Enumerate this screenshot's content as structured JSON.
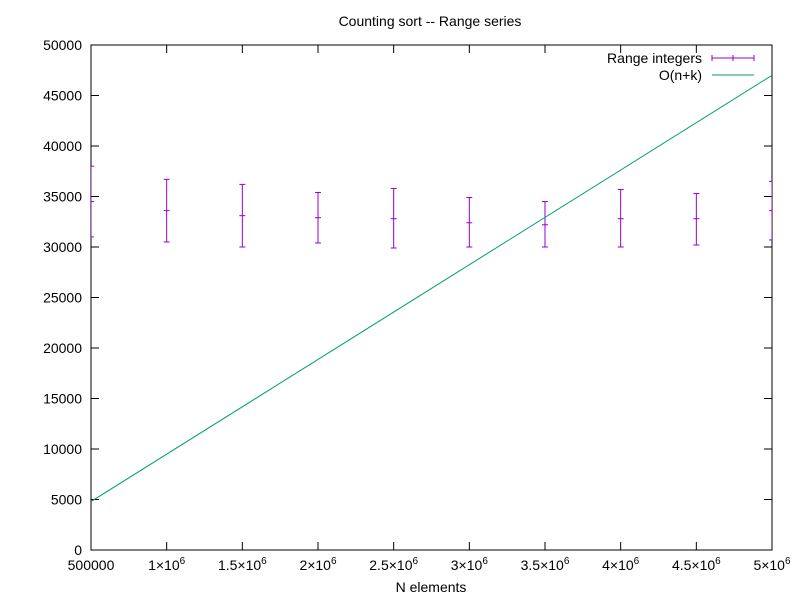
{
  "chart_data": {
    "type": "line",
    "title": "Counting sort -- Range series",
    "xlabel": "N elements",
    "ylabel": "",
    "xlim": [
      500000,
      5000000
    ],
    "ylim": [
      0,
      50000
    ],
    "grid": false,
    "legend_placement": "top-right",
    "x_ticks": [
      {
        "value": 500000,
        "base": "500000",
        "exp": ""
      },
      {
        "value": 1000000,
        "base": "1×10",
        "exp": "6"
      },
      {
        "value": 1500000,
        "base": "1.5×10",
        "exp": "6"
      },
      {
        "value": 2000000,
        "base": "2×10",
        "exp": "6"
      },
      {
        "value": 2500000,
        "base": "2.5×10",
        "exp": "6"
      },
      {
        "value": 3000000,
        "base": "3×10",
        "exp": "6"
      },
      {
        "value": 3500000,
        "base": "3.5×10",
        "exp": "6"
      },
      {
        "value": 4000000,
        "base": "4×10",
        "exp": "6"
      },
      {
        "value": 4500000,
        "base": "4.5×10",
        "exp": "6"
      },
      {
        "value": 5000000,
        "base": "5×10",
        "exp": "6"
      }
    ],
    "y_ticks": [
      {
        "value": 0,
        "label": "0"
      },
      {
        "value": 5000,
        "label": "5000"
      },
      {
        "value": 10000,
        "label": "10000"
      },
      {
        "value": 15000,
        "label": "15000"
      },
      {
        "value": 20000,
        "label": "20000"
      },
      {
        "value": 25000,
        "label": "25000"
      },
      {
        "value": 30000,
        "label": "30000"
      },
      {
        "value": 35000,
        "label": "35000"
      },
      {
        "value": 40000,
        "label": "40000"
      },
      {
        "value": 45000,
        "label": "45000"
      },
      {
        "value": 50000,
        "label": "50000"
      }
    ],
    "series": [
      {
        "name": "Range integers",
        "kind": "errorbar",
        "color": "#9400d3",
        "points": [
          {
            "x": 500000,
            "y": 34500,
            "ylow": 31000,
            "yhigh": 38000
          },
          {
            "x": 1000000,
            "y": 33600,
            "ylow": 30500,
            "yhigh": 36700
          },
          {
            "x": 1500000,
            "y": 33100,
            "ylow": 30000,
            "yhigh": 36200
          },
          {
            "x": 2000000,
            "y": 32900,
            "ylow": 30400,
            "yhigh": 35400
          },
          {
            "x": 2500000,
            "y": 32800,
            "ylow": 29900,
            "yhigh": 35800
          },
          {
            "x": 3000000,
            "y": 32400,
            "ylow": 30000,
            "yhigh": 34900
          },
          {
            "x": 3500000,
            "y": 32200,
            "ylow": 30000,
            "yhigh": 34500
          },
          {
            "x": 4000000,
            "y": 32800,
            "ylow": 30000,
            "yhigh": 35700
          },
          {
            "x": 4500000,
            "y": 32800,
            "ylow": 30200,
            "yhigh": 35300
          },
          {
            "x": 5000000,
            "y": 33600,
            "ylow": 30700,
            "yhigh": 36500
          }
        ]
      },
      {
        "name": "O(n+k)",
        "kind": "line",
        "color": "#009e73",
        "x": [
          500000,
          5000000
        ],
        "y": [
          4800,
          47000
        ]
      }
    ]
  }
}
